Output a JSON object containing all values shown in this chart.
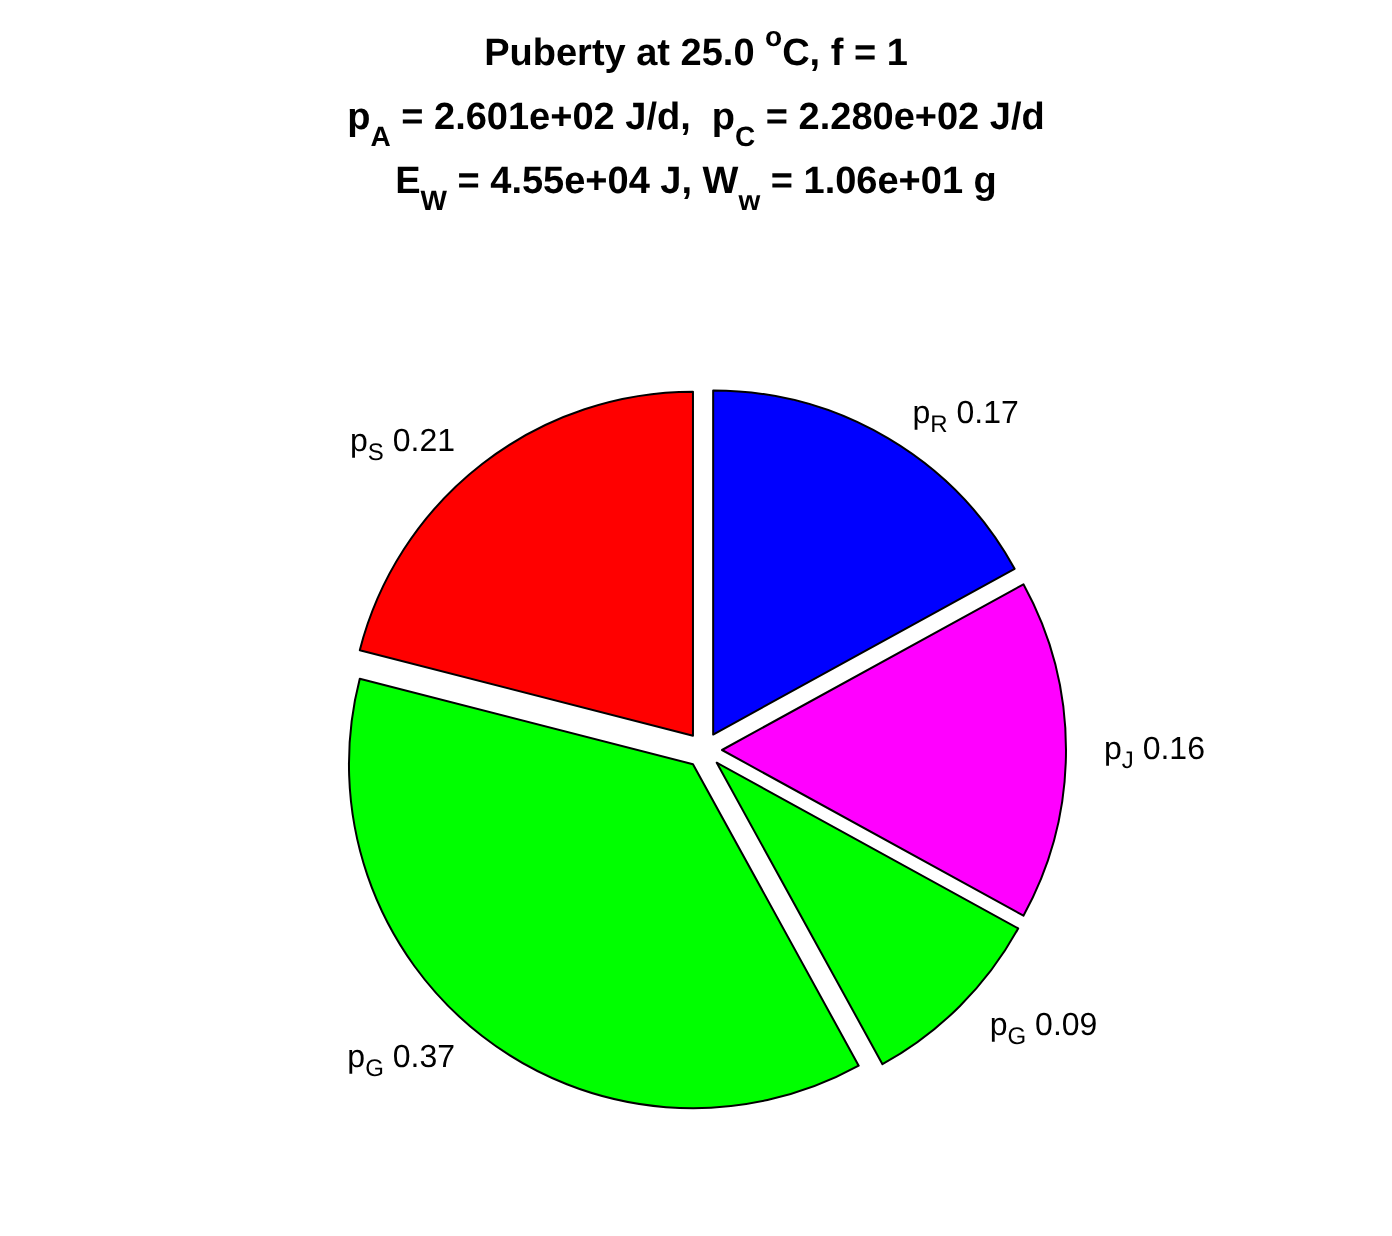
{
  "chart_data": {
    "type": "pie",
    "title": "Puberty at 25.0 $^{o}$C, f = 1\np$_{A}$ = 2.601e+02 J/d,  p$_{C}$ = 2.280e+02 J/d\nE$_{W}$ = 4.55e+04 J, W$_{w}$ = 1.06e+01 g",
    "categories": [
      "p$_{R}$",
      "p$_{J}$",
      "p$_{G}$",
      "p$_{G}$",
      "p$_{S}$"
    ],
    "values": [
      0.17,
      0.16,
      0.09,
      0.37,
      0.21
    ],
    "colors": [
      "#0000ff",
      "#ff00ff",
      "#00ff00",
      "#00ff00",
      "#ff0000"
    ],
    "data_labels": true,
    "legend": false
  }
}
